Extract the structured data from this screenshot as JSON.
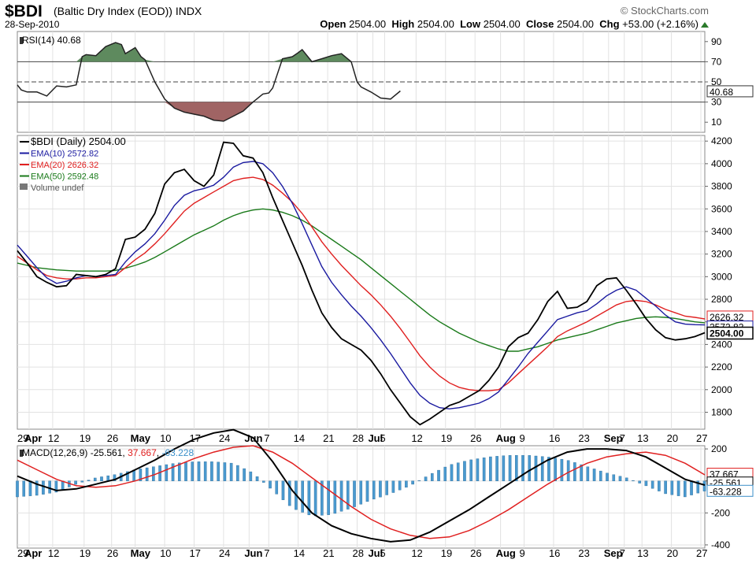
{
  "header": {
    "symbol": "$BDI",
    "name": "(Baltic Dry Index (EOD))",
    "exchange": "INDX",
    "date": "28-Sep-2010",
    "brand": "© StockCharts.com",
    "open_label": "Open",
    "open": "2504.00",
    "high_label": "High",
    "high": "2504.00",
    "low_label": "Low",
    "low": "2504.00",
    "close_label": "Close",
    "close": "2504.00",
    "chg_label": "Chg",
    "chg": "+53.00 (+2.16%)"
  },
  "colors": {
    "price": "#000000",
    "ema10": "#1a1aa0",
    "ema20": "#e02020",
    "ema50": "#1a7a1a",
    "rsi_fill_up": "#5e8a5e",
    "rsi_fill_down": "#a06464",
    "macd_hist": "#4a9ad0",
    "signal": "#e02020"
  },
  "chart_data": [
    {
      "type": "line",
      "panel": "rsi",
      "title": "RSI(14) 40.68",
      "ylim": [
        0,
        100
      ],
      "y_ticks": [
        90,
        70,
        50,
        30,
        10
      ],
      "reference_lines": [
        70,
        50,
        30
      ],
      "last_value_label": "40.68",
      "x": [
        0,
        2,
        5,
        10,
        15,
        20,
        25,
        30,
        33,
        35,
        40,
        45,
        50,
        53,
        55,
        60,
        63,
        65,
        70,
        75,
        80,
        85,
        90,
        95,
        100,
        105,
        110,
        115,
        120,
        125,
        128,
        130,
        135,
        140,
        143,
        145,
        150,
        155,
        160,
        165,
        170,
        173,
        175,
        180,
        185,
        190,
        195
      ],
      "series": [
        {
          "values": [
            47,
            42,
            40,
            40,
            36,
            46,
            45,
            47,
            75,
            77,
            76,
            85,
            89,
            87,
            78,
            84,
            75,
            72,
            50,
            33,
            24,
            20,
            18,
            16,
            12,
            11,
            16,
            21,
            30,
            38,
            39,
            44,
            73,
            75,
            79,
            82,
            70,
            73,
            76,
            78,
            70,
            50,
            45,
            40,
            34,
            33,
            41
          ]
        }
      ]
    },
    {
      "type": "line",
      "panel": "price",
      "ylim": [
        1650,
        4250
      ],
      "y_ticks": [
        4200,
        4000,
        3800,
        3600,
        3400,
        3200,
        3000,
        2800,
        2600,
        2400,
        2200,
        2000,
        1800
      ],
      "x_tick_labels": [
        "29",
        "Apr",
        "12",
        "19",
        "26",
        "May",
        "10",
        "17",
        "24",
        "Jun",
        "7",
        "14",
        "21",
        "28",
        "Jul",
        "5",
        "12",
        "19",
        "26",
        "Aug",
        "9",
        "16",
        "23",
        "Sep",
        "7",
        "13",
        "20",
        "27"
      ],
      "x_tick_pos": [
        0,
        6,
        18,
        34,
        48,
        60,
        75,
        90,
        105,
        118,
        128,
        143,
        158,
        173,
        181,
        187,
        203,
        218,
        233,
        246,
        258,
        273,
        288,
        301,
        309,
        318,
        333,
        348
      ],
      "legend": [
        "$BDI (Daily) 2504.00",
        "EMA(10) 2572.82",
        "EMA(20) 2626.32",
        "EMA(50) 2592.48",
        "Volume undef"
      ],
      "last_value_labels": [
        "2626.32",
        "2572.82",
        "2504.00"
      ],
      "x": [
        0,
        5,
        10,
        15,
        20,
        25,
        30,
        35,
        40,
        45,
        50,
        55,
        60,
        65,
        70,
        75,
        80,
        85,
        90,
        95,
        100,
        105,
        110,
        115,
        120,
        125,
        130,
        135,
        140,
        145,
        150,
        155,
        160,
        165,
        170,
        175,
        180,
        185,
        190,
        195,
        200,
        205,
        210,
        215,
        220,
        225,
        230,
        235,
        240,
        245,
        250,
        255,
        260,
        265,
        270,
        275,
        280,
        285,
        290,
        295,
        300,
        305,
        310,
        315,
        320,
        325,
        330,
        335,
        340,
        345,
        350
      ],
      "series": [
        {
          "name": "$BDI (Daily)",
          "values": [
            3230,
            3120,
            3000,
            2950,
            2910,
            2920,
            3020,
            3010,
            3000,
            3020,
            3070,
            3330,
            3350,
            3420,
            3560,
            3820,
            3920,
            3950,
            3850,
            3800,
            3900,
            4190,
            4180,
            4070,
            4050,
            3920,
            3700,
            3500,
            3300,
            3100,
            2880,
            2680,
            2550,
            2450,
            2400,
            2350,
            2260,
            2140,
            2000,
            1880,
            1760,
            1690,
            1740,
            1800,
            1860,
            1890,
            1940,
            1990,
            2080,
            2200,
            2380,
            2460,
            2500,
            2620,
            2780,
            2870,
            2720,
            2730,
            2780,
            2920,
            2980,
            2990,
            2880,
            2760,
            2630,
            2530,
            2460,
            2440,
            2450,
            2470,
            2504
          ]
        },
        {
          "name": "EMA(10)",
          "values": [
            3280,
            3180,
            3080,
            2990,
            2940,
            2960,
            2990,
            3010,
            3000,
            3010,
            3020,
            3130,
            3220,
            3290,
            3380,
            3500,
            3630,
            3720,
            3760,
            3780,
            3810,
            3880,
            3970,
            4010,
            4020,
            4000,
            3920,
            3800,
            3650,
            3470,
            3280,
            3090,
            2950,
            2840,
            2740,
            2650,
            2550,
            2440,
            2320,
            2190,
            2060,
            1950,
            1880,
            1840,
            1830,
            1840,
            1860,
            1880,
            1920,
            1980,
            2090,
            2200,
            2320,
            2420,
            2520,
            2620,
            2650,
            2680,
            2700,
            2760,
            2830,
            2880,
            2910,
            2880,
            2810,
            2740,
            2660,
            2600,
            2580,
            2575,
            2573
          ]
        },
        {
          "name": "EMA(20)",
          "values": [
            3180,
            3120,
            3060,
            3010,
            2990,
            2980,
            2980,
            2990,
            2990,
            3000,
            3010,
            3080,
            3150,
            3210,
            3290,
            3380,
            3480,
            3580,
            3650,
            3700,
            3750,
            3800,
            3850,
            3870,
            3880,
            3860,
            3810,
            3740,
            3660,
            3560,
            3440,
            3310,
            3200,
            3100,
            3010,
            2920,
            2840,
            2750,
            2650,
            2540,
            2420,
            2300,
            2200,
            2120,
            2060,
            2020,
            2000,
            1990,
            1990,
            2000,
            2060,
            2140,
            2220,
            2300,
            2380,
            2470,
            2520,
            2560,
            2600,
            2650,
            2700,
            2750,
            2780,
            2790,
            2780,
            2750,
            2710,
            2680,
            2650,
            2640,
            2626
          ]
        },
        {
          "name": "EMA(50)",
          "values": [
            3120,
            3100,
            3080,
            3070,
            3060,
            3055,
            3050,
            3050,
            3050,
            3050,
            3055,
            3075,
            3100,
            3130,
            3170,
            3220,
            3270,
            3320,
            3370,
            3410,
            3450,
            3500,
            3540,
            3570,
            3590,
            3600,
            3590,
            3570,
            3540,
            3500,
            3450,
            3390,
            3330,
            3270,
            3210,
            3150,
            3080,
            3010,
            2940,
            2870,
            2800,
            2730,
            2660,
            2600,
            2550,
            2500,
            2460,
            2420,
            2390,
            2360,
            2340,
            2340,
            2360,
            2380,
            2410,
            2440,
            2460,
            2480,
            2500,
            2530,
            2560,
            2590,
            2610,
            2630,
            2640,
            2645,
            2640,
            2630,
            2615,
            2600,
            2592
          ]
        }
      ]
    },
    {
      "type": "line",
      "panel": "macd",
      "title": "MACD(12,26,9) -25.561, 37.667, -63.228",
      "ylim": [
        -420,
        220
      ],
      "y_ticks": [
        200,
        0,
        -200,
        -400
      ],
      "last_value_labels": [
        "37.667",
        "-25.561",
        "-63.228"
      ],
      "x": [
        0,
        10,
        20,
        30,
        40,
        50,
        60,
        70,
        80,
        90,
        100,
        110,
        120,
        130,
        140,
        150,
        160,
        170,
        180,
        190,
        200,
        210,
        220,
        230,
        240,
        250,
        260,
        270,
        280,
        290,
        300,
        310,
        320,
        330,
        340,
        350
      ],
      "series": [
        {
          "name": "MACD",
          "values": [
            30,
            -20,
            -60,
            -50,
            -20,
            10,
            70,
            130,
            200,
            260,
            300,
            320,
            270,
            120,
            -60,
            -200,
            -280,
            -330,
            -360,
            -380,
            -370,
            -320,
            -250,
            -180,
            -100,
            -20,
            60,
            130,
            180,
            200,
            200,
            190,
            150,
            80,
            10,
            -26
          ]
        },
        {
          "name": "Signal",
          "values": [
            130,
            70,
            10,
            -30,
            -40,
            -30,
            0,
            40,
            90,
            140,
            180,
            210,
            220,
            180,
            110,
            20,
            -70,
            -160,
            -240,
            -300,
            -340,
            -360,
            -350,
            -310,
            -250,
            -180,
            -100,
            -20,
            50,
            110,
            150,
            170,
            180,
            160,
            110,
            38
          ]
        },
        {
          "name": "Histogram",
          "values": [
            -100,
            -90,
            -70,
            -20,
            20,
            40,
            70,
            90,
            110,
            120,
            120,
            110,
            50,
            -60,
            -170,
            -220,
            -210,
            -170,
            -120,
            -80,
            -30,
            40,
            100,
            130,
            150,
            160,
            160,
            150,
            130,
            90,
            50,
            20,
            -30,
            -80,
            -100,
            -63
          ]
        }
      ]
    }
  ]
}
